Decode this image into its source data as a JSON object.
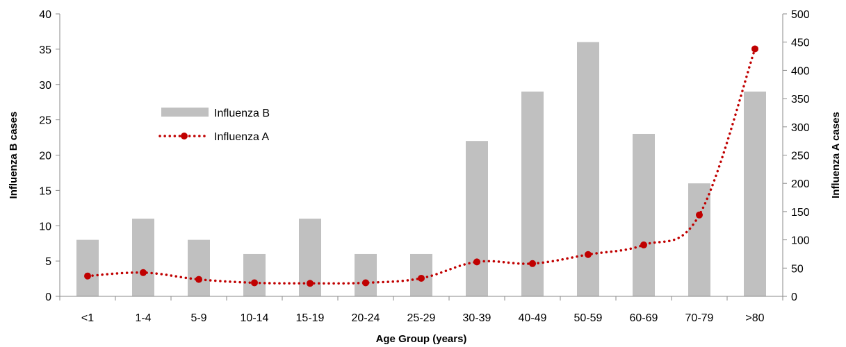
{
  "chart_data": {
    "type": "bar",
    "categories": [
      "<1",
      "1-4",
      "5-9",
      "10-14",
      "15-19",
      "20-24",
      "25-29",
      "30-39",
      "40-49",
      "50-59",
      "60-69",
      "70-79",
      ">80"
    ],
    "series": [
      {
        "name": "Influenza B",
        "type": "bar",
        "axis": "left",
        "color": "#c0c0c0",
        "values": [
          8,
          11,
          8,
          6,
          11,
          6,
          6,
          22,
          29,
          36,
          23,
          16,
          29
        ]
      },
      {
        "name": "Influenza A",
        "type": "line",
        "axis": "right",
        "color": "#c00000",
        "style": "dotted-with-markers",
        "values": [
          36,
          42,
          30,
          24,
          23,
          24,
          32,
          61,
          58,
          74,
          91,
          144,
          438
        ]
      }
    ],
    "xlabel": "Age Group (years)",
    "ylabel_left": "Influenza B cases",
    "ylabel_right": "Influenza A cases",
    "ylim_left": [
      0,
      40
    ],
    "yticks_left": [
      "0",
      "5",
      "10",
      "15",
      "20",
      "25",
      "30",
      "35",
      "40"
    ],
    "ylim_right": [
      0,
      500
    ],
    "yticks_right": [
      "0",
      "50",
      "100",
      "150",
      "200",
      "250",
      "300",
      "350",
      "400",
      "450",
      "500"
    ],
    "grid": false,
    "legend": {
      "position": "upper-left",
      "entries": [
        "Influenza B",
        "Influenza A"
      ]
    }
  }
}
